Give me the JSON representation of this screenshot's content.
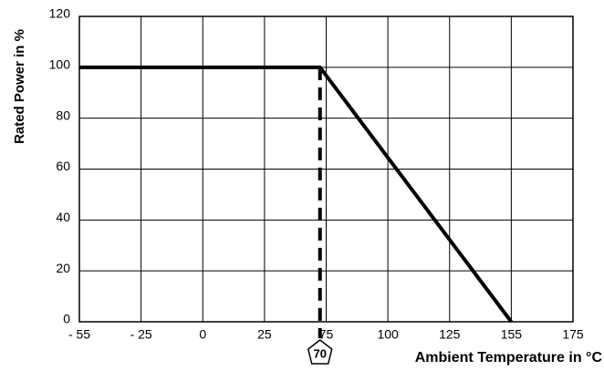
{
  "chart_data": {
    "type": "line",
    "x_label": "Ambient Temperature in °C",
    "y_label": "Rated Power in %",
    "x": [
      -55,
      70,
      155
    ],
    "series": [
      {
        "name": "Rated Power",
        "color": "#000000",
        "values": [
          100,
          100,
          0
        ]
      }
    ],
    "xlim": [
      -55,
      175
    ],
    "xticks": [
      {
        "value": -55,
        "label": "- 55"
      },
      {
        "value": -25,
        "label": "- 25"
      },
      0,
      25,
      75,
      100,
      125,
      155,
      175
    ],
    "ylim": [
      0,
      120
    ],
    "yticks": [
      0,
      20,
      40,
      60,
      80,
      100,
      120
    ],
    "marker": 70,
    "grid": true
  }
}
